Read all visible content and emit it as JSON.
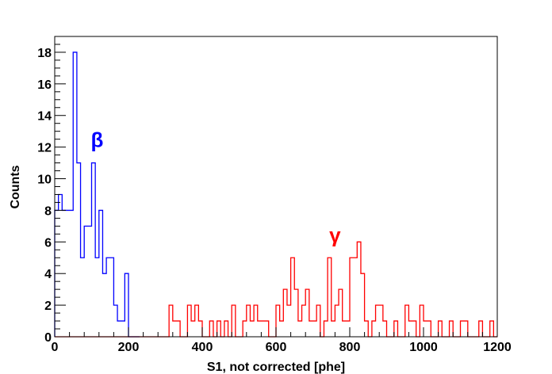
{
  "chart_data": {
    "type": "histogram",
    "title": "",
    "xlabel": "S1, not corrected [phe]",
    "ylabel": "Counts",
    "xlim": [
      0,
      1200
    ],
    "ylim": [
      0,
      19
    ],
    "bin_width": 10,
    "x_ticks": [
      0,
      200,
      400,
      600,
      800,
      1000,
      1200
    ],
    "y_ticks": [
      0,
      2,
      4,
      6,
      8,
      10,
      12,
      14,
      16,
      18
    ],
    "grid": false,
    "legend": "none",
    "annotations": [
      {
        "text": "β",
        "x": 115,
        "y": 12,
        "color": "#0000ff"
      },
      {
        "text": "γ",
        "x": 760,
        "y": 6,
        "color": "#ff0000"
      }
    ],
    "series": [
      {
        "color": "#0000ff",
        "bins": [
          [
            0,
            8
          ],
          [
            10,
            9
          ],
          [
            20,
            8
          ],
          [
            30,
            8
          ],
          [
            40,
            8
          ],
          [
            50,
            18
          ],
          [
            60,
            11
          ],
          [
            70,
            5
          ],
          [
            80,
            7
          ],
          [
            90,
            7
          ],
          [
            100,
            11
          ],
          [
            110,
            5
          ],
          [
            120,
            8
          ],
          [
            130,
            4
          ],
          [
            140,
            5
          ],
          [
            150,
            5
          ],
          [
            160,
            2
          ],
          [
            170,
            1
          ],
          [
            180,
            1
          ],
          [
            190,
            4
          ],
          [
            200,
            0
          ],
          [
            210,
            0
          ],
          [
            220,
            0
          ]
        ]
      },
      {
        "color": "#ff0000",
        "bins": [
          [
            0,
            0
          ],
          [
            10,
            0
          ],
          [
            20,
            0
          ],
          [
            30,
            0
          ],
          [
            40,
            0
          ],
          [
            50,
            0
          ],
          [
            60,
            0
          ],
          [
            70,
            0
          ],
          [
            80,
            0
          ],
          [
            90,
            0
          ],
          [
            100,
            0
          ],
          [
            110,
            0
          ],
          [
            120,
            0
          ],
          [
            130,
            0
          ],
          [
            140,
            0
          ],
          [
            150,
            0
          ],
          [
            160,
            0
          ],
          [
            170,
            0
          ],
          [
            180,
            0
          ],
          [
            190,
            0
          ],
          [
            200,
            0
          ],
          [
            210,
            0
          ],
          [
            220,
            0
          ],
          [
            230,
            0
          ],
          [
            240,
            0
          ],
          [
            250,
            0
          ],
          [
            260,
            0
          ],
          [
            270,
            0
          ],
          [
            280,
            0
          ],
          [
            290,
            0
          ],
          [
            300,
            0
          ],
          [
            310,
            2
          ],
          [
            320,
            1
          ],
          [
            330,
            1
          ],
          [
            340,
            0
          ],
          [
            350,
            0
          ],
          [
            360,
            2
          ],
          [
            370,
            1
          ],
          [
            380,
            2
          ],
          [
            390,
            1
          ],
          [
            400,
            0
          ],
          [
            410,
            0
          ],
          [
            420,
            1
          ],
          [
            430,
            0
          ],
          [
            440,
            1
          ],
          [
            450,
            0
          ],
          [
            460,
            1
          ],
          [
            470,
            0
          ],
          [
            480,
            2
          ],
          [
            490,
            0
          ],
          [
            500,
            0
          ],
          [
            510,
            1
          ],
          [
            520,
            2
          ],
          [
            530,
            1
          ],
          [
            540,
            2
          ],
          [
            550,
            1
          ],
          [
            560,
            1
          ],
          [
            570,
            1
          ],
          [
            580,
            0
          ],
          [
            590,
            0
          ],
          [
            600,
            2
          ],
          [
            610,
            1
          ],
          [
            620,
            3
          ],
          [
            630,
            2
          ],
          [
            640,
            5
          ],
          [
            650,
            3
          ],
          [
            660,
            1
          ],
          [
            670,
            2
          ],
          [
            680,
            3
          ],
          [
            690,
            1
          ],
          [
            700,
            1
          ],
          [
            710,
            2
          ],
          [
            720,
            0
          ],
          [
            730,
            1
          ],
          [
            740,
            5
          ],
          [
            750,
            1
          ],
          [
            760,
            2
          ],
          [
            770,
            3
          ],
          [
            780,
            1
          ],
          [
            790,
            1
          ],
          [
            800,
            5
          ],
          [
            810,
            5
          ],
          [
            820,
            6
          ],
          [
            830,
            4
          ],
          [
            840,
            1
          ],
          [
            850,
            0
          ],
          [
            860,
            1
          ],
          [
            870,
            2
          ],
          [
            880,
            2
          ],
          [
            890,
            1
          ],
          [
            900,
            0
          ],
          [
            910,
            0
          ],
          [
            920,
            1
          ],
          [
            930,
            0
          ],
          [
            940,
            0
          ],
          [
            950,
            2
          ],
          [
            960,
            1
          ],
          [
            970,
            1
          ],
          [
            980,
            0
          ],
          [
            990,
            2
          ],
          [
            1000,
            1
          ],
          [
            1010,
            1
          ],
          [
            1020,
            0
          ],
          [
            1030,
            0
          ],
          [
            1040,
            1
          ],
          [
            1050,
            0
          ],
          [
            1060,
            0
          ],
          [
            1070,
            1
          ],
          [
            1080,
            0
          ],
          [
            1090,
            0
          ],
          [
            1100,
            1
          ],
          [
            1110,
            1
          ],
          [
            1120,
            0
          ],
          [
            1130,
            0
          ],
          [
            1140,
            0
          ],
          [
            1150,
            1
          ],
          [
            1160,
            0
          ],
          [
            1170,
            0
          ],
          [
            1180,
            1
          ],
          [
            1190,
            0
          ]
        ]
      }
    ]
  }
}
